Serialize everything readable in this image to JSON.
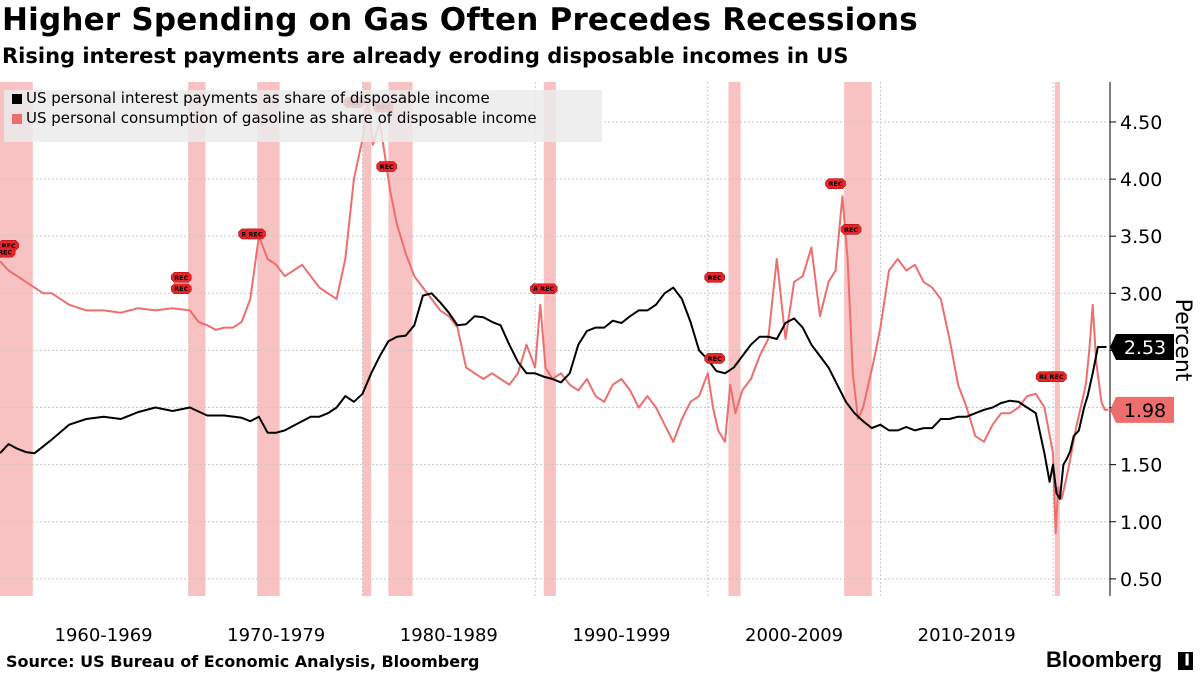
{
  "title": "Higher Spending on Gas Often Precedes Recessions",
  "subtitle": "Rising interest payments are already eroding disposable incomes in US",
  "source": "Source: US Bureau of Economic Analysis, Bloomberg",
  "brand": "Bloomberg",
  "brand_mark": "▐",
  "colors": {
    "interest": "#000000",
    "gasoline": "#ee6e6e",
    "recession": "#f7b7b7",
    "marker": "#e8262a",
    "grid": "#c8c8c8"
  },
  "chart_data": {
    "type": "line",
    "ylabel": "Percent",
    "ylim": [
      0.35,
      4.85
    ],
    "y_ticks": [
      0.5,
      1.0,
      1.5,
      2.0,
      2.5,
      3.0,
      3.5,
      4.0,
      4.5
    ],
    "y_tick_labels": [
      "0.50",
      "1.00",
      "1.50",
      "2.00",
      "2.50",
      "3.00",
      "3.50",
      "4.00",
      "4.50"
    ],
    "xlim": [
      1959.0,
      2023.3
    ],
    "decade_labels": [
      {
        "label": "1960-1969",
        "x": 1965.0
      },
      {
        "label": "1970-1979",
        "x": 1975.0
      },
      {
        "label": "1980-1989",
        "x": 1985.0
      },
      {
        "label": "1990-1999",
        "x": 1995.0
      },
      {
        "label": "2000-2009",
        "x": 2005.0
      },
      {
        "label": "2010-2019",
        "x": 2015.0
      }
    ],
    "decade_gridlines": [
      1970.0,
      1980.0,
      1990.0,
      2000.0,
      2010.0,
      2020.0
    ],
    "legend": [
      {
        "label": "US personal interest payments as share of disposable income",
        "color": "#000000"
      },
      {
        "label": "US personal consumption of gasoline as share of disposable income",
        "color": "#ee6e6e"
      }
    ],
    "recessions": [
      [
        1959.0,
        1960.9
      ],
      [
        1969.9,
        1970.9
      ],
      [
        1973.9,
        1975.2
      ],
      [
        1980.0,
        1980.5
      ],
      [
        1981.5,
        1982.9
      ],
      [
        1990.5,
        1991.2
      ],
      [
        2001.2,
        2001.9
      ],
      [
        2007.9,
        2009.5
      ],
      [
        2020.1,
        2020.4
      ]
    ],
    "rec_markers": [
      {
        "label": "REC",
        "x": 1959.5,
        "y": 3.42
      },
      {
        "label": "REC",
        "x": 1959.3,
        "y": 3.36
      },
      {
        "label": "REC",
        "x": 1969.5,
        "y": 3.14
      },
      {
        "label": "REC",
        "x": 1969.5,
        "y": 3.04
      },
      {
        "label": "REC",
        "x": 1973.4,
        "y": 3.52
      },
      {
        "label": "REC",
        "x": 1973.8,
        "y": 3.52
      },
      {
        "label": "REC",
        "x": 1979.5,
        "y": 4.67
      },
      {
        "label": "REC",
        "x": 1981.2,
        "y": 4.63
      },
      {
        "label": "REC",
        "x": 1981.4,
        "y": 4.11
      },
      {
        "label": "REC",
        "x": 1990.3,
        "y": 3.04
      },
      {
        "label": "REC",
        "x": 1990.7,
        "y": 3.04
      },
      {
        "label": "REC",
        "x": 2000.4,
        "y": 3.14
      },
      {
        "label": "REC",
        "x": 2000.4,
        "y": 2.43
      },
      {
        "label": "REC",
        "x": 2007.4,
        "y": 3.96
      },
      {
        "label": "REC",
        "x": 2008.3,
        "y": 3.56
      },
      {
        "label": "REC",
        "x": 2019.6,
        "y": 2.27
      },
      {
        "label": "REC",
        "x": 2020.2,
        "y": 2.27
      }
    ],
    "series": [
      {
        "name": "US personal interest payments as share of disposable income",
        "end_label": "2.53",
        "x": [
          1959.0,
          1959.5,
          1960.0,
          1960.5,
          1961.0,
          1961.5,
          1962.0,
          1963.0,
          1964.0,
          1965.0,
          1966.0,
          1967.0,
          1968.0,
          1969.0,
          1970.0,
          1971.0,
          1972.0,
          1973.0,
          1973.5,
          1974.0,
          1974.5,
          1975.0,
          1975.5,
          1976.0,
          1976.5,
          1977.0,
          1977.5,
          1978.0,
          1978.5,
          1979.0,
          1979.5,
          1980.0,
          1980.5,
          1981.0,
          1981.5,
          1982.0,
          1982.5,
          1983.0,
          1983.5,
          1984.0,
          1984.5,
          1985.0,
          1985.5,
          1986.0,
          1986.5,
          1987.0,
          1987.5,
          1988.0,
          1988.5,
          1989.0,
          1989.5,
          1990.0,
          1990.5,
          1991.0,
          1991.5,
          1992.0,
          1992.5,
          1993.0,
          1993.5,
          1994.0,
          1994.5,
          1995.0,
          1995.5,
          1996.0,
          1996.5,
          1997.0,
          1997.5,
          1998.0,
          1998.5,
          1999.0,
          1999.5,
          2000.0,
          2000.5,
          2001.0,
          2001.5,
          2002.0,
          2002.5,
          2003.0,
          2003.5,
          2004.0,
          2004.5,
          2005.0,
          2005.5,
          2006.0,
          2006.5,
          2007.0,
          2007.5,
          2008.0,
          2008.5,
          2009.0,
          2009.5,
          2010.0,
          2010.5,
          2011.0,
          2011.5,
          2012.0,
          2012.5,
          2013.0,
          2013.5,
          2014.0,
          2014.5,
          2015.0,
          2015.5,
          2016.0,
          2016.5,
          2017.0,
          2017.5,
          2018.0,
          2018.5,
          2019.0,
          2019.5,
          2019.8,
          2020.0,
          2020.2,
          2020.4,
          2020.6,
          2020.8,
          2021.0,
          2021.2,
          2021.5,
          2021.8,
          2022.0,
          2022.3,
          2022.6,
          2022.9,
          2023.1
        ],
        "values": [
          1.6,
          1.68,
          1.64,
          1.61,
          1.6,
          1.66,
          1.72,
          1.85,
          1.9,
          1.92,
          1.9,
          1.96,
          2.0,
          1.97,
          2.0,
          1.93,
          1.93,
          1.91,
          1.88,
          1.92,
          1.78,
          1.78,
          1.8,
          1.84,
          1.88,
          1.92,
          1.92,
          1.95,
          2.0,
          2.1,
          2.05,
          2.12,
          2.3,
          2.45,
          2.58,
          2.62,
          2.63,
          2.72,
          2.98,
          3.0,
          2.92,
          2.83,
          2.72,
          2.73,
          2.8,
          2.79,
          2.75,
          2.72,
          2.55,
          2.4,
          2.3,
          2.3,
          2.27,
          2.25,
          2.22,
          2.3,
          2.55,
          2.67,
          2.7,
          2.7,
          2.76,
          2.74,
          2.8,
          2.85,
          2.85,
          2.9,
          3.0,
          3.05,
          2.95,
          2.75,
          2.5,
          2.42,
          2.32,
          2.3,
          2.35,
          2.45,
          2.55,
          2.62,
          2.62,
          2.6,
          2.74,
          2.78,
          2.7,
          2.55,
          2.45,
          2.35,
          2.2,
          2.05,
          1.95,
          1.88,
          1.82,
          1.85,
          1.8,
          1.8,
          1.83,
          1.8,
          1.82,
          1.82,
          1.9,
          1.9,
          1.92,
          1.92,
          1.95,
          1.98,
          2.0,
          2.04,
          2.06,
          2.05,
          2.0,
          1.95,
          1.6,
          1.35,
          1.5,
          1.25,
          1.2,
          1.5,
          1.55,
          1.62,
          1.75,
          1.8,
          2.0,
          2.1,
          2.3,
          2.53,
          2.53,
          2.53
        ]
      },
      {
        "name": "US personal consumption of gasoline as share of disposable income",
        "end_label": "1.98",
        "x": [
          1959.0,
          1959.5,
          1960.0,
          1960.5,
          1961.0,
          1961.5,
          1962.0,
          1963.0,
          1964.0,
          1965.0,
          1966.0,
          1967.0,
          1968.0,
          1969.0,
          1970.0,
          1970.5,
          1971.0,
          1971.5,
          1972.0,
          1972.5,
          1973.0,
          1973.5,
          1974.0,
          1974.5,
          1975.0,
          1975.5,
          1976.0,
          1976.5,
          1977.0,
          1977.5,
          1978.0,
          1978.5,
          1979.0,
          1979.5,
          1980.0,
          1980.3,
          1980.6,
          1981.0,
          1981.3,
          1981.6,
          1982.0,
          1982.5,
          1983.0,
          1983.5,
          1984.0,
          1984.5,
          1985.0,
          1985.5,
          1986.0,
          1986.5,
          1987.0,
          1987.5,
          1988.0,
          1988.5,
          1989.0,
          1989.5,
          1990.0,
          1990.3,
          1990.6,
          1991.0,
          1991.5,
          1992.0,
          1992.5,
          1993.0,
          1993.5,
          1994.0,
          1994.5,
          1995.0,
          1995.5,
          1996.0,
          1996.5,
          1997.0,
          1997.5,
          1998.0,
          1998.5,
          1999.0,
          1999.5,
          2000.0,
          2000.3,
          2000.6,
          2001.0,
          2001.3,
          2001.6,
          2002.0,
          2002.5,
          2003.0,
          2003.5,
          2004.0,
          2004.5,
          2005.0,
          2005.5,
          2006.0,
          2006.5,
          2007.0,
          2007.4,
          2007.8,
          2008.1,
          2008.4,
          2008.7,
          2009.0,
          2009.3,
          2009.6,
          2010.0,
          2010.5,
          2011.0,
          2011.5,
          2012.0,
          2012.5,
          2013.0,
          2013.5,
          2014.0,
          2014.5,
          2015.0,
          2015.5,
          2016.0,
          2016.5,
          2017.0,
          2017.5,
          2018.0,
          2018.5,
          2019.0,
          2019.5,
          2020.0,
          2020.15,
          2020.3,
          2020.5,
          2020.8,
          2021.0,
          2021.3,
          2021.6,
          2021.9,
          2022.1,
          2022.3,
          2022.5,
          2022.8,
          2023.0,
          2023.2
        ],
        "values": [
          3.28,
          3.2,
          3.15,
          3.1,
          3.05,
          3.0,
          3.0,
          2.9,
          2.85,
          2.85,
          2.83,
          2.87,
          2.85,
          2.87,
          2.85,
          2.75,
          2.72,
          2.68,
          2.7,
          2.7,
          2.75,
          2.95,
          3.5,
          3.3,
          3.25,
          3.15,
          3.2,
          3.25,
          3.15,
          3.05,
          3.0,
          2.95,
          3.3,
          4.0,
          4.35,
          4.7,
          4.3,
          4.5,
          4.2,
          3.9,
          3.6,
          3.35,
          3.15,
          3.05,
          2.95,
          2.85,
          2.8,
          2.7,
          2.35,
          2.3,
          2.25,
          2.3,
          2.25,
          2.2,
          2.3,
          2.55,
          2.35,
          2.9,
          2.35,
          2.25,
          2.3,
          2.2,
          2.15,
          2.25,
          2.1,
          2.05,
          2.2,
          2.25,
          2.15,
          2.0,
          2.1,
          2.0,
          1.85,
          1.7,
          1.9,
          2.05,
          2.1,
          2.3,
          2.0,
          1.8,
          1.7,
          2.2,
          1.95,
          2.15,
          2.25,
          2.45,
          2.6,
          3.3,
          2.6,
          3.1,
          3.15,
          3.4,
          2.8,
          3.1,
          3.2,
          3.85,
          3.3,
          2.3,
          1.9,
          2.0,
          2.2,
          2.4,
          2.7,
          3.2,
          3.3,
          3.2,
          3.25,
          3.1,
          3.05,
          2.95,
          2.6,
          2.2,
          2.0,
          1.75,
          1.7,
          1.85,
          1.95,
          1.95,
          2.0,
          2.1,
          2.12,
          2.0,
          1.6,
          0.9,
          1.3,
          1.2,
          1.4,
          1.55,
          1.8,
          2.0,
          2.2,
          2.5,
          2.9,
          2.4,
          2.05,
          1.98,
          1.98
        ]
      }
    ]
  }
}
